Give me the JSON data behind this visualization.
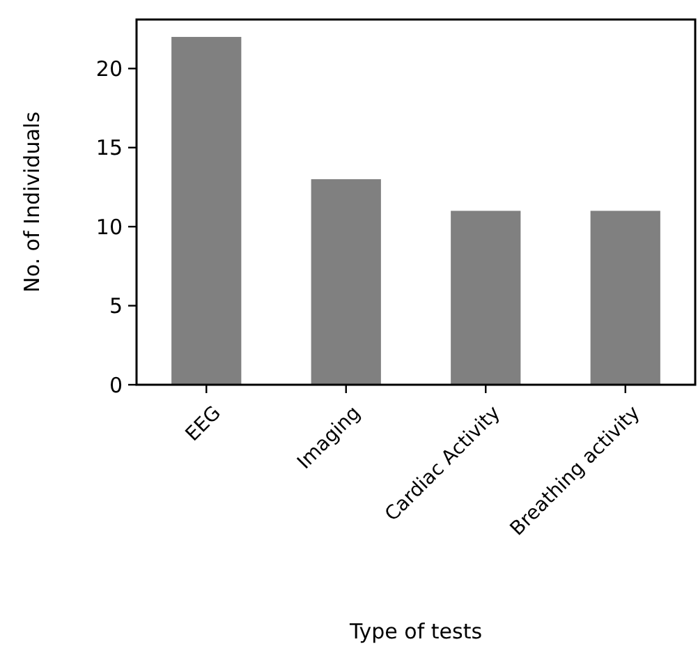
{
  "chart_data": {
    "type": "bar",
    "xlabel": "Type of tests",
    "ylabel": "No. of Individuals",
    "categories": [
      "EEG",
      "Imaging",
      "Cardiac Activity",
      "Breathing activity"
    ],
    "values": [
      22,
      13,
      11,
      11
    ],
    "color": "#808080",
    "ylim": [
      0,
      23.1
    ],
    "yticks": [
      0,
      5,
      10,
      15,
      20
    ],
    "grid": false
  }
}
